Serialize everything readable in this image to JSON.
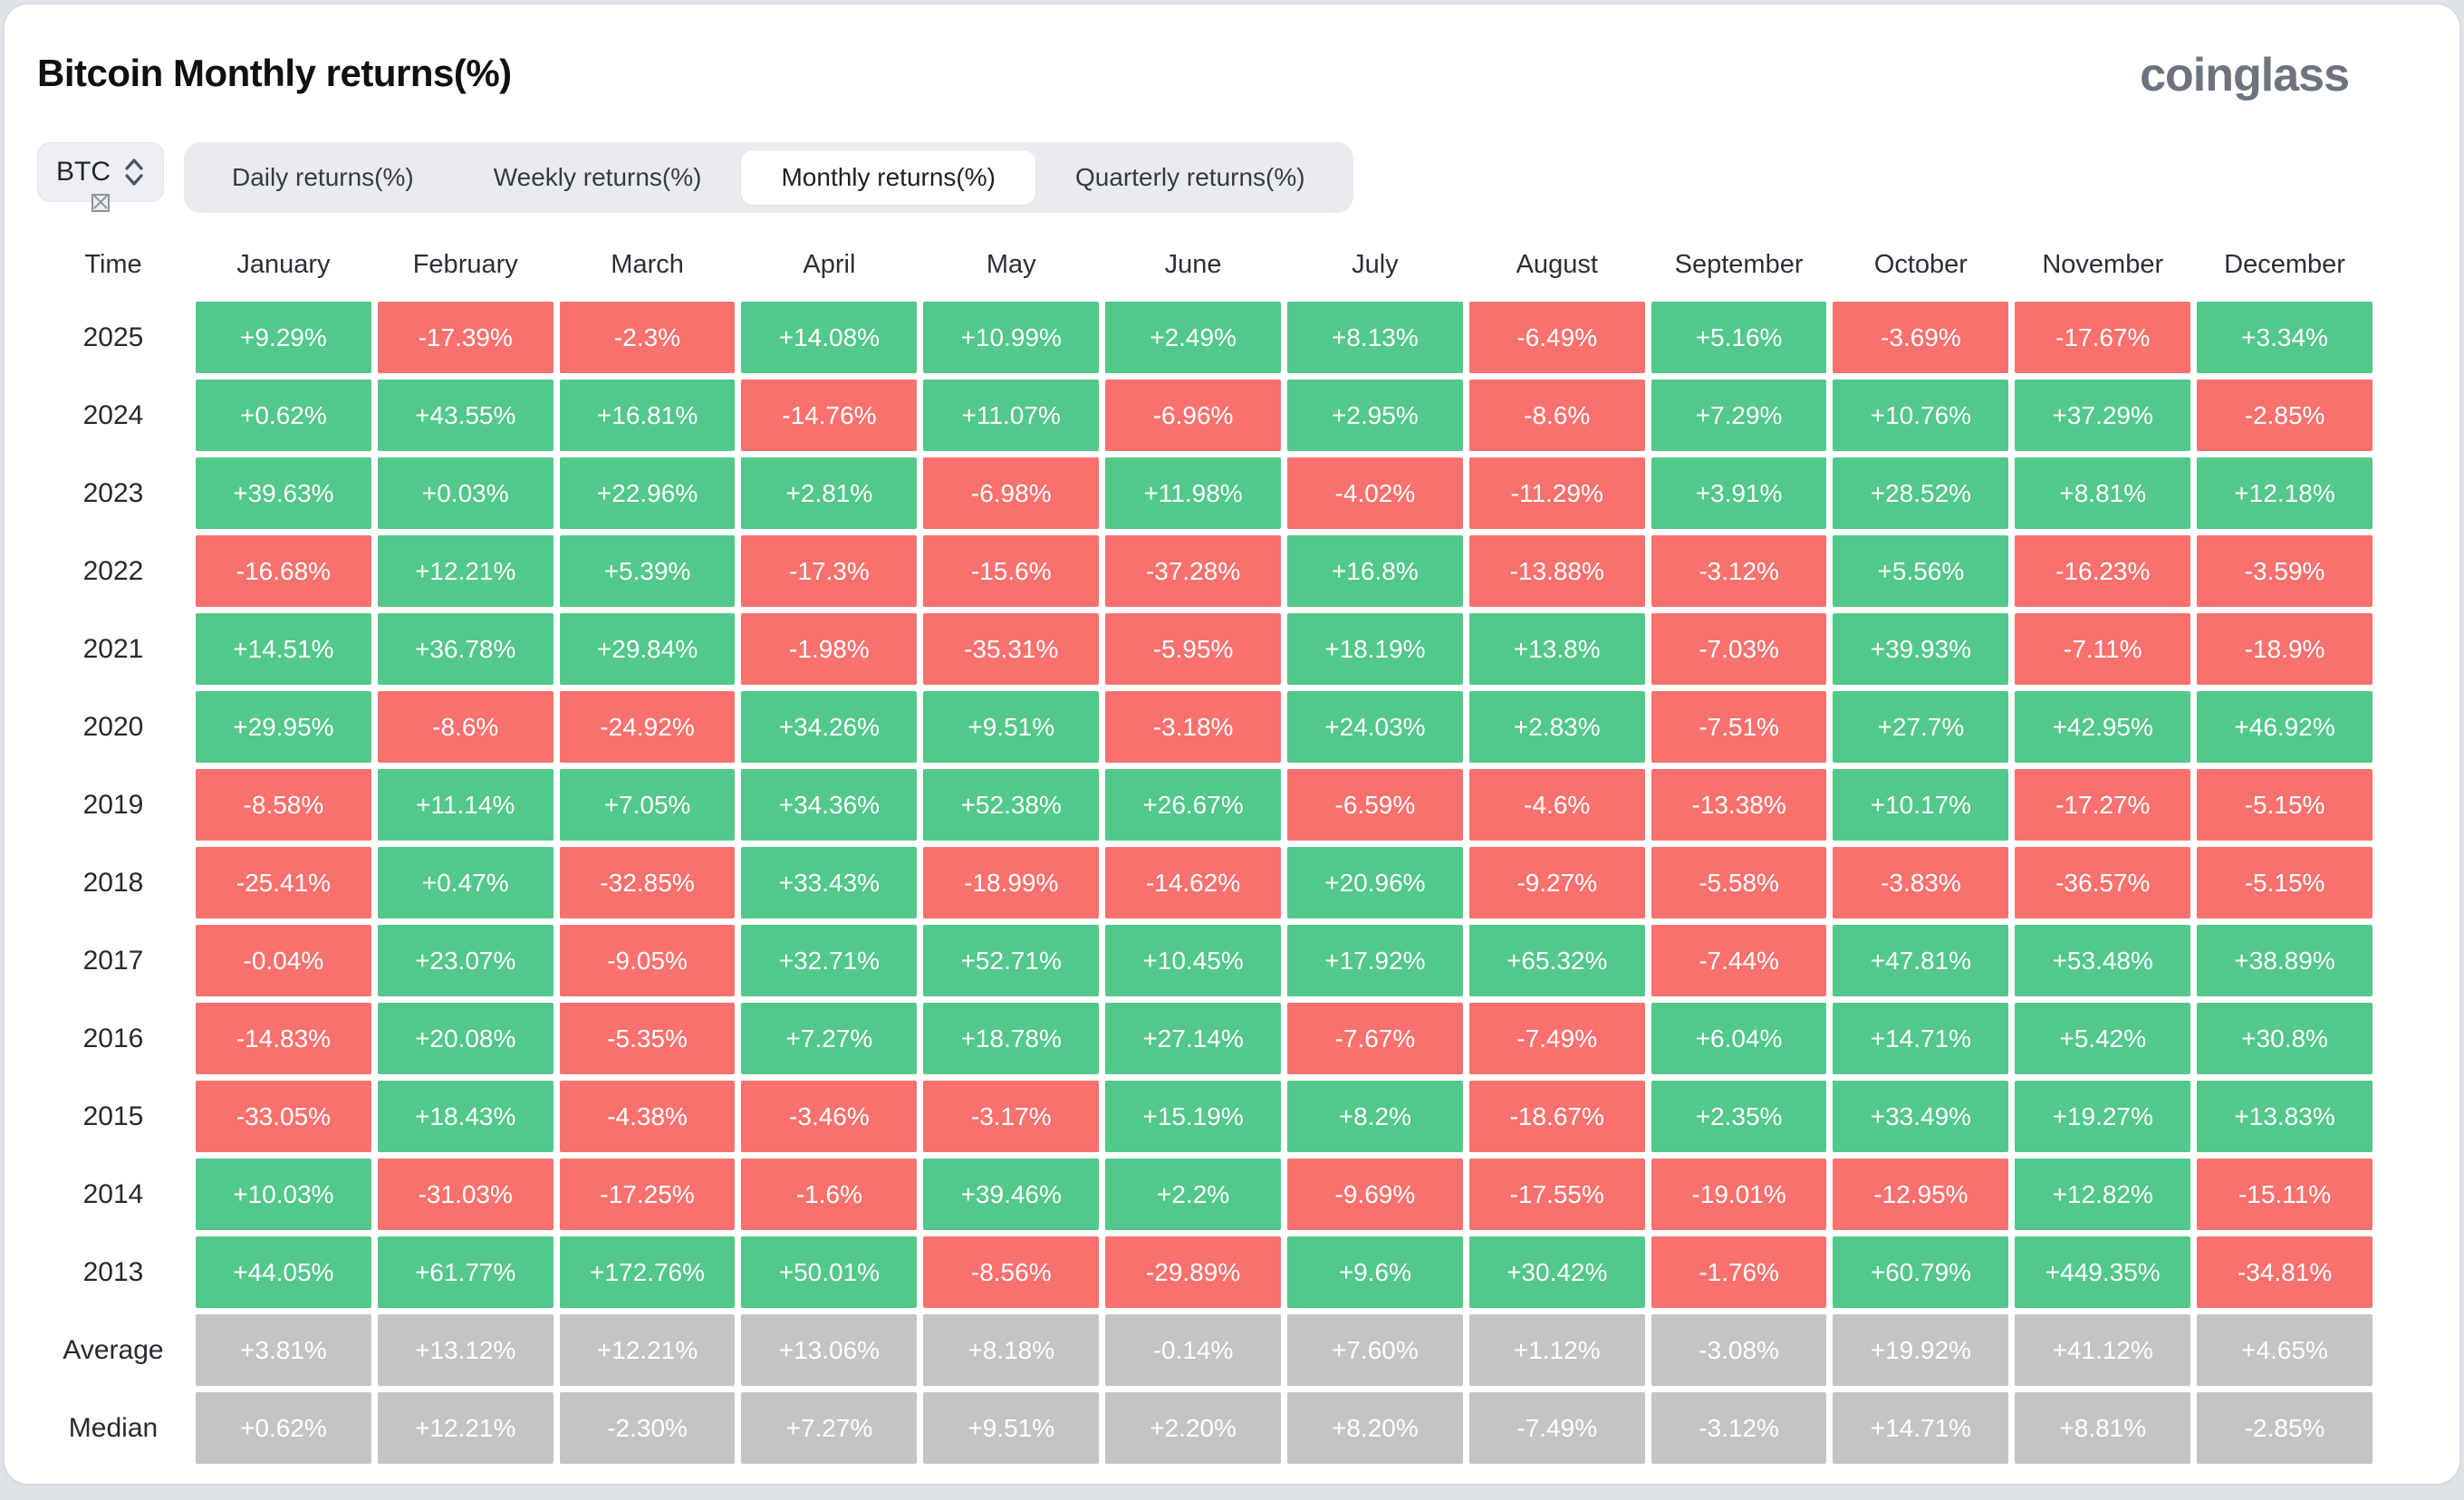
{
  "page": {
    "title": "Bitcoin Monthly returns(%)",
    "brand": "coinglass"
  },
  "controls": {
    "symbol": "BTC",
    "tabs": [
      {
        "label": "Daily returns(%)",
        "active": false
      },
      {
        "label": "Weekly returns(%)",
        "active": false
      },
      {
        "label": "Monthly returns(%)",
        "active": true
      },
      {
        "label": "Quarterly returns(%)",
        "active": false
      }
    ]
  },
  "colors": {
    "positive": "#52c88b",
    "negative": "#f8716e",
    "neutral": "#c4c3c5"
  },
  "chart_data": {
    "type": "heatmap",
    "title": "Bitcoin Monthly returns(%)",
    "time_header": "Time",
    "columns": [
      "January",
      "February",
      "March",
      "April",
      "May",
      "June",
      "July",
      "August",
      "September",
      "October",
      "November",
      "December"
    ],
    "rows": [
      {
        "label": "2025",
        "kind": "year",
        "values": [
          "+9.29%",
          "-17.39%",
          "-2.3%",
          "+14.08%",
          "+10.99%",
          "+2.49%",
          "+8.13%",
          "-6.49%",
          "+5.16%",
          "-3.69%",
          "-17.67%",
          "+3.34%"
        ]
      },
      {
        "label": "2024",
        "kind": "year",
        "values": [
          "+0.62%",
          "+43.55%",
          "+16.81%",
          "-14.76%",
          "+11.07%",
          "-6.96%",
          "+2.95%",
          "-8.6%",
          "+7.29%",
          "+10.76%",
          "+37.29%",
          "-2.85%"
        ]
      },
      {
        "label": "2023",
        "kind": "year",
        "values": [
          "+39.63%",
          "+0.03%",
          "+22.96%",
          "+2.81%",
          "-6.98%",
          "+11.98%",
          "-4.02%",
          "-11.29%",
          "+3.91%",
          "+28.52%",
          "+8.81%",
          "+12.18%"
        ]
      },
      {
        "label": "2022",
        "kind": "year",
        "values": [
          "-16.68%",
          "+12.21%",
          "+5.39%",
          "-17.3%",
          "-15.6%",
          "-37.28%",
          "+16.8%",
          "-13.88%",
          "-3.12%",
          "+5.56%",
          "-16.23%",
          "-3.59%"
        ]
      },
      {
        "label": "2021",
        "kind": "year",
        "values": [
          "+14.51%",
          "+36.78%",
          "+29.84%",
          "-1.98%",
          "-35.31%",
          "-5.95%",
          "+18.19%",
          "+13.8%",
          "-7.03%",
          "+39.93%",
          "-7.11%",
          "-18.9%"
        ]
      },
      {
        "label": "2020",
        "kind": "year",
        "values": [
          "+29.95%",
          "-8.6%",
          "-24.92%",
          "+34.26%",
          "+9.51%",
          "-3.18%",
          "+24.03%",
          "+2.83%",
          "-7.51%",
          "+27.7%",
          "+42.95%",
          "+46.92%"
        ]
      },
      {
        "label": "2019",
        "kind": "year",
        "values": [
          "-8.58%",
          "+11.14%",
          "+7.05%",
          "+34.36%",
          "+52.38%",
          "+26.67%",
          "-6.59%",
          "-4.6%",
          "-13.38%",
          "+10.17%",
          "-17.27%",
          "-5.15%"
        ]
      },
      {
        "label": "2018",
        "kind": "year",
        "values": [
          "-25.41%",
          "+0.47%",
          "-32.85%",
          "+33.43%",
          "-18.99%",
          "-14.62%",
          "+20.96%",
          "-9.27%",
          "-5.58%",
          "-3.83%",
          "-36.57%",
          "-5.15%"
        ]
      },
      {
        "label": "2017",
        "kind": "year",
        "values": [
          "-0.04%",
          "+23.07%",
          "-9.05%",
          "+32.71%",
          "+52.71%",
          "+10.45%",
          "+17.92%",
          "+65.32%",
          "-7.44%",
          "+47.81%",
          "+53.48%",
          "+38.89%"
        ]
      },
      {
        "label": "2016",
        "kind": "year",
        "values": [
          "-14.83%",
          "+20.08%",
          "-5.35%",
          "+7.27%",
          "+18.78%",
          "+27.14%",
          "-7.67%",
          "-7.49%",
          "+6.04%",
          "+14.71%",
          "+5.42%",
          "+30.8%"
        ]
      },
      {
        "label": "2015",
        "kind": "year",
        "values": [
          "-33.05%",
          "+18.43%",
          "-4.38%",
          "-3.46%",
          "-3.17%",
          "+15.19%",
          "+8.2%",
          "-18.67%",
          "+2.35%",
          "+33.49%",
          "+19.27%",
          "+13.83%"
        ]
      },
      {
        "label": "2014",
        "kind": "year",
        "values": [
          "+10.03%",
          "-31.03%",
          "-17.25%",
          "-1.6%",
          "+39.46%",
          "+2.2%",
          "-9.69%",
          "-17.55%",
          "-19.01%",
          "-12.95%",
          "+12.82%",
          "-15.11%"
        ]
      },
      {
        "label": "2013",
        "kind": "year",
        "values": [
          "+44.05%",
          "+61.77%",
          "+172.76%",
          "+50.01%",
          "-8.56%",
          "-29.89%",
          "+9.6%",
          "+30.42%",
          "-1.76%",
          "+60.79%",
          "+449.35%",
          "-34.81%"
        ]
      },
      {
        "label": "Average",
        "kind": "summary",
        "values": [
          "+3.81%",
          "+13.12%",
          "+12.21%",
          "+13.06%",
          "+8.18%",
          "-0.14%",
          "+7.60%",
          "+1.12%",
          "-3.08%",
          "+19.92%",
          "+41.12%",
          "+4.65%"
        ]
      },
      {
        "label": "Median",
        "kind": "summary",
        "values": [
          "+0.62%",
          "+12.21%",
          "-2.30%",
          "+7.27%",
          "+9.51%",
          "+2.20%",
          "+8.20%",
          "-7.49%",
          "-3.12%",
          "+14.71%",
          "+8.81%",
          "-2.85%"
        ]
      }
    ]
  }
}
